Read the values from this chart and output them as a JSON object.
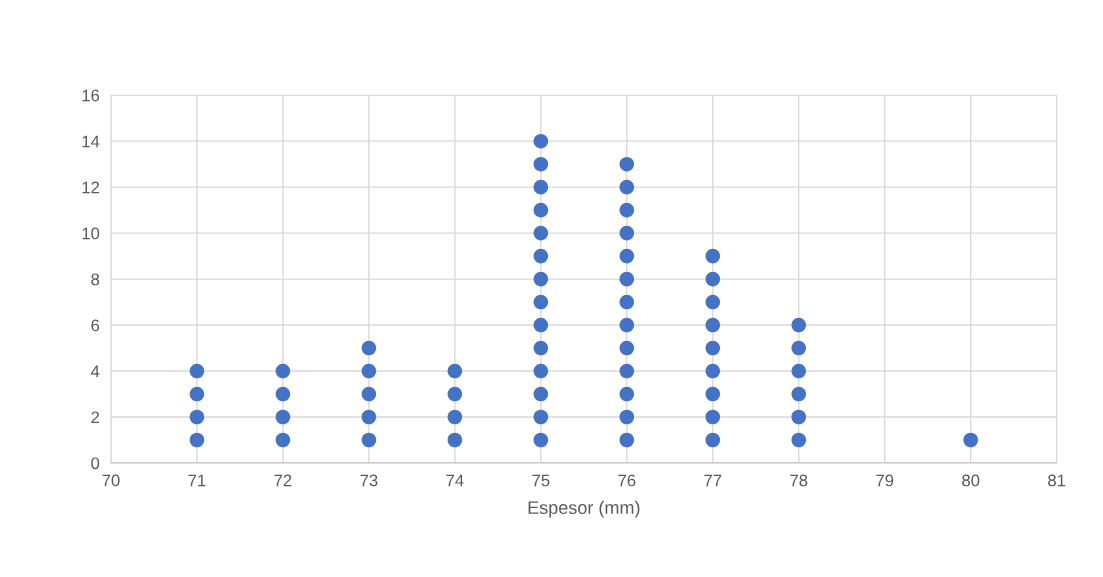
{
  "chart_data": {
    "type": "scatter",
    "xlabel": "Espesor (mm)",
    "x": [
      71,
      71,
      71,
      71,
      72,
      72,
      72,
      72,
      73,
      73,
      73,
      73,
      73,
      74,
      74,
      74,
      74,
      75,
      75,
      75,
      75,
      75,
      75,
      75,
      75,
      75,
      75,
      75,
      75,
      75,
      75,
      76,
      76,
      76,
      76,
      76,
      76,
      76,
      76,
      76,
      76,
      76,
      76,
      76,
      77,
      77,
      77,
      77,
      77,
      77,
      77,
      77,
      77,
      78,
      78,
      78,
      78,
      78,
      78,
      80
    ],
    "values": [
      1,
      2,
      3,
      4,
      1,
      2,
      3,
      4,
      1,
      2,
      3,
      4,
      5,
      1,
      2,
      3,
      4,
      1,
      2,
      3,
      4,
      5,
      6,
      7,
      8,
      9,
      10,
      11,
      12,
      13,
      14,
      1,
      2,
      3,
      4,
      5,
      6,
      7,
      8,
      9,
      10,
      11,
      12,
      13,
      1,
      2,
      3,
      4,
      5,
      6,
      7,
      8,
      9,
      1,
      2,
      3,
      4,
      5,
      6,
      1
    ],
    "color": "#4472c4",
    "marker": "circle",
    "xlim": [
      70,
      81
    ],
    "xticks": [
      70,
      71,
      72,
      73,
      74,
      75,
      76,
      77,
      78,
      79,
      80,
      81
    ],
    "ylim": [
      0,
      16
    ],
    "yticks": [
      0,
      2,
      4,
      6,
      8,
      10,
      12,
      14,
      16
    ],
    "grid": true
  }
}
